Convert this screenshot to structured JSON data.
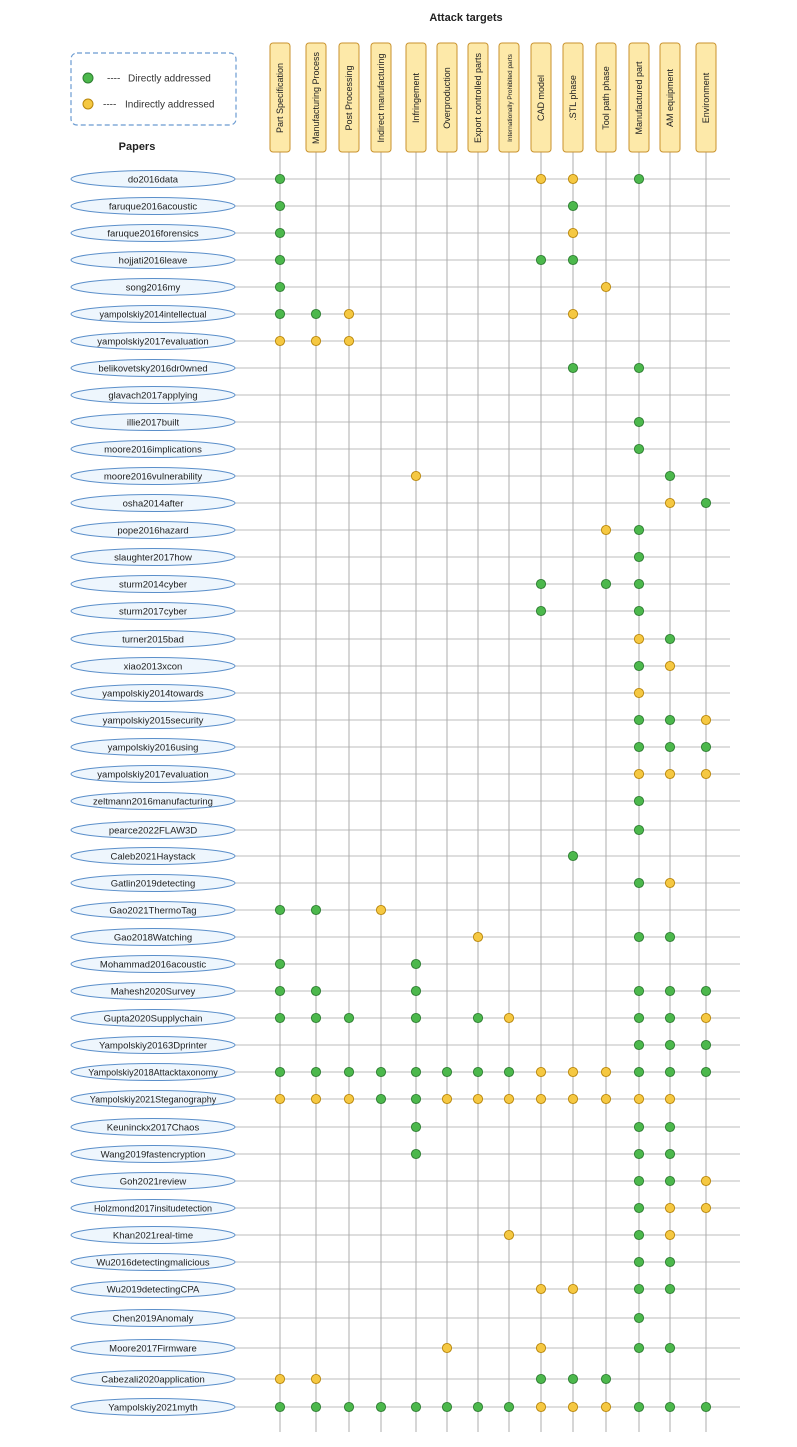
{
  "title": "Attack targets",
  "papers_header": "Papers",
  "legend": {
    "dash": "----",
    "direct": "Directly addressed",
    "indirect": "Indirectly addressed",
    "direct_color": "#4cb84c",
    "indirect_color": "#f5c842"
  },
  "columns": [
    "Part Specification",
    "Manufacturing Process",
    "Post Processing",
    "Indirect manufacturing",
    "Infringement",
    "Overproduction",
    "Export controlled parts",
    "Internationally Prohibited  parts",
    "CAD model",
    ".STL phase",
    "Tool path phase",
    "Manufactured part",
    "AM equipment",
    "Environment"
  ],
  "rows": [
    {
      "label": "do2016data",
      "marks": "D-------IIxDxx"
    },
    {
      "label": "faruque2016acoustic",
      "marks": "D--------Dxxxx"
    },
    {
      "label": "faruque2016forensics",
      "marks": "D--------Ixxxx"
    },
    {
      "label": "hojjati2016leave",
      "marks": "D-------DDxxxx"
    },
    {
      "label": "song2016my",
      "marks": "D---------Ixxx"
    },
    {
      "label": "yampolskiy2014intellectual",
      "marks": "DDI------Ixxxx"
    },
    {
      "label": "yampolskiy2017evaluation",
      "marks": "III-------xxxx"
    },
    {
      "label": "belikovetsky2016dr0wned",
      "marks": "---------D-Dxx"
    },
    {
      "label": "glavach2017applying",
      "marks": "--------------"
    },
    {
      "label": "illie2017built",
      "marks": "-----------Dxx"
    },
    {
      "label": "moore2016implications",
      "marks": "-----------Dxx"
    },
    {
      "label": "moore2016vulnerability",
      "marks": "----I-------Dx"
    },
    {
      "label": "osha2014after",
      "marks": "------------ID"
    },
    {
      "label": "pope2016hazard",
      "marks": "----------IDxx"
    },
    {
      "label": "slaughter2017how",
      "marks": "-----------Dxx"
    },
    {
      "label": "sturm2014cyber",
      "marks": "--------D-DDxx"
    },
    {
      "label": "sturm2017cyber",
      "marks": "--------D--Dxx"
    },
    {
      "label": "turner2015bad",
      "marks": "-----------IDx"
    },
    {
      "label": "xiao2013xcon",
      "marks": "-----------DIx"
    },
    {
      "label": "yampolskiy2014towards",
      "marks": "-----------Ixx"
    },
    {
      "label": "yampolskiy2015security",
      "marks": "-----------DDI"
    },
    {
      "label": "yampolskiy2016using",
      "marks": "-----------DDD"
    },
    {
      "label": "yampolskiy2017evaluation",
      "marks": "-----------III"
    },
    {
      "label": "zeltmann2016manufacturing",
      "marks": "-----------Dxx"
    },
    {
      "label": "pearce2022FLAW3D",
      "marks": "-----------Dxx"
    },
    {
      "label": "Caleb2021Haystack",
      "marks": "---------Dxxxx"
    },
    {
      "label": "Gatlin2019detecting",
      "marks": "-----------DIx"
    },
    {
      "label": "Gao2021ThermoTag",
      "marks": "DD-I------xxxx"
    },
    {
      "label": "Gao2018Watching",
      "marks": "------I----DDx"
    },
    {
      "label": "Mohammad2016acoustic",
      "marks": "D---D-----xxxx"
    },
    {
      "label": "Mahesh2020Survey",
      "marks": "DD--D------DDD"
    },
    {
      "label": "Gupta2020Supplychain",
      "marks": "DDD-D-DI---DDI"
    },
    {
      "label": "Yampolskiy20163Dprinter",
      "marks": "-----------DDD"
    },
    {
      "label": "Yampolskiy2018Attacktaxonomy",
      "marks": "DDDDDDDDIIIDDD"
    },
    {
      "label": "Yampolskiy2021Steganography",
      "marks": "IIIDDIIIIIIIIx"
    },
    {
      "label": "Keuninckx2017Chaos",
      "marks": "----D------DDx"
    },
    {
      "label": "Wang2019fastencryption",
      "marks": "----D------DDx"
    },
    {
      "label": "Goh2021review",
      "marks": "-----------DDI"
    },
    {
      "label": "Holzmond2017insitudetection",
      "marks": "-----------DII"
    },
    {
      "label": "Khan2021real-time",
      "marks": "-------I---DIx"
    },
    {
      "label": "Wu2016detectingmalicious",
      "marks": "-----------DDx"
    },
    {
      "label": "Wu2019detectingCPA",
      "marks": "--------II-DDx"
    },
    {
      "label": "Chen2019Anomaly",
      "marks": "-----------Dxx"
    },
    {
      "label": "Moore2017Firmware",
      "marks": "-----I--I--DDx"
    },
    {
      "label": "Cabezali2020application",
      "marks": "II------DDDxxx"
    },
    {
      "label": "Yampolskiy2021myth",
      "marks": "DDDDDDDDIIIDDD"
    }
  ]
}
